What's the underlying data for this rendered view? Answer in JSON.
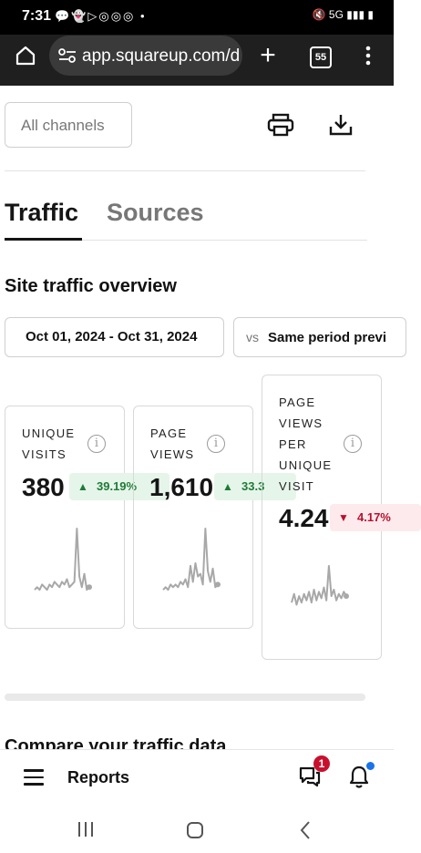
{
  "status_bar": {
    "time": "7:31",
    "icons": "💬👻▷◎◎◎ •",
    "right_icons": "🔇 5G ▮▮▮ ▮"
  },
  "browser": {
    "url": "app.squareup.com/d",
    "tab_count": "55"
  },
  "filters": {
    "channel": "All channels"
  },
  "tabs": [
    {
      "label": "Traffic",
      "active": true
    },
    {
      "label": "Sources",
      "active": false
    }
  ],
  "overview": {
    "title": "Site traffic overview",
    "date_range": "Oct 01, 2024 - Oct 31, 2024",
    "vs_label": "vs",
    "compare_period": "Same period previ"
  },
  "metrics": [
    {
      "label_lines": [
        "UNIQUE",
        "VISITS"
      ],
      "value": "380",
      "change": "39.19%",
      "direction": "up",
      "spark": [
        3,
        4,
        3,
        5,
        4,
        3,
        5,
        4,
        6,
        5,
        4,
        6,
        5,
        7,
        4,
        5,
        6,
        26,
        8,
        4,
        9,
        3,
        4
      ]
    },
    {
      "label_lines": [
        "PAGE",
        "VIEWS"
      ],
      "value": "1,610",
      "change": "33.3",
      "direction": "up",
      "spark": [
        3,
        4,
        3,
        5,
        4,
        5,
        4,
        6,
        5,
        7,
        4,
        12,
        6,
        13,
        8,
        9,
        5,
        26,
        10,
        6,
        11,
        4,
        5
      ]
    },
    {
      "label_lines": [
        "PAGE",
        "VIEWS",
        "PER",
        "UNIQUE",
        "VISIT"
      ],
      "value": "4.24",
      "change": "4.17%",
      "direction": "down",
      "spark": [
        5,
        9,
        4,
        8,
        5,
        9,
        6,
        10,
        5,
        11,
        6,
        10,
        7,
        12,
        6,
        22,
        8,
        11,
        6,
        9,
        7,
        10,
        8
      ]
    }
  ],
  "sections": {
    "compare_title": "Compare your traffic data"
  },
  "app_bar": {
    "title": "Reports",
    "notification_count": "1"
  },
  "colors": {
    "positive": "#1e7b36",
    "negative": "#b8112f",
    "spark": "#a8a8a8",
    "badge_red": "#c8102e",
    "dot_blue": "#1a73e8"
  }
}
